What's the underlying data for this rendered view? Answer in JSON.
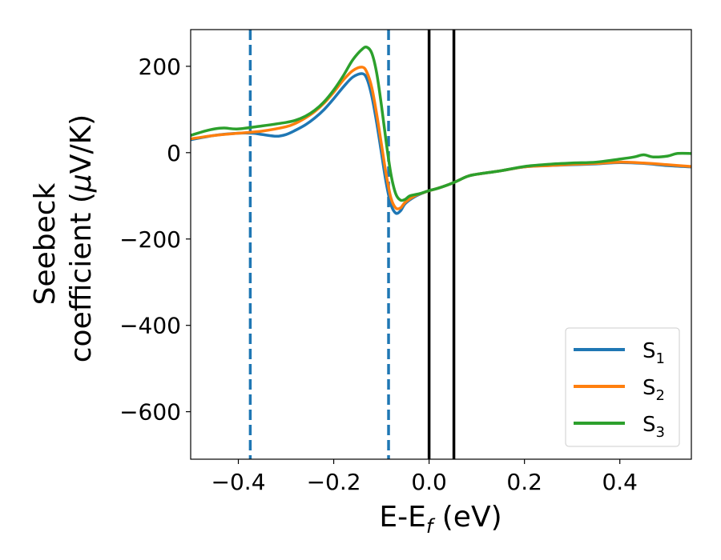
{
  "chart_data": {
    "type": "line",
    "xlabel_main": "E-E",
    "xlabel_sub": "f",
    "xlabel_unit": " (eV)",
    "ylabel_line1": "Seebeck",
    "ylabel_line2_text": "coefficient  (",
    "ylabel_mu": "μ",
    "ylabel_line2_unit": "V/K)",
    "xlim": [
      -0.5,
      0.55
    ],
    "ylim": [
      -710,
      285
    ],
    "xticks": [
      -0.4,
      -0.2,
      0.0,
      0.2,
      0.4
    ],
    "xtick_labels": [
      "−0.4",
      "−0.2",
      "0.0",
      "0.2",
      "0.4"
    ],
    "yticks": [
      200,
      0,
      -200,
      -400,
      -600
    ],
    "ytick_labels": [
      "200",
      "0",
      "−200",
      "−400",
      "−600"
    ],
    "grid": false,
    "legend_position": "bottom-right",
    "vlines": [
      {
        "x": -0.375,
        "style": "dashed",
        "color": "#1f77b4"
      },
      {
        "x": -0.085,
        "style": "dashed",
        "color": "#1f77b4"
      },
      {
        "x": 0.0,
        "style": "solid",
        "color": "#000000"
      },
      {
        "x": 0.052,
        "style": "solid",
        "color": "#000000"
      }
    ],
    "series": [
      {
        "name": "S",
        "sub": "1",
        "color": "#1f77b4",
        "x": [
          -0.5,
          -0.45,
          -0.4,
          -0.37,
          -0.35,
          -0.32,
          -0.3,
          -0.28,
          -0.26,
          -0.24,
          -0.22,
          -0.2,
          -0.18,
          -0.16,
          -0.14,
          -0.13,
          -0.12,
          -0.11,
          -0.1,
          -0.09,
          -0.08,
          -0.07,
          -0.06,
          -0.05,
          -0.03,
          -0.01,
          0.0,
          0.02,
          0.05,
          0.08,
          0.1,
          0.15,
          0.2,
          0.25,
          0.3,
          0.35,
          0.4,
          0.45,
          0.5,
          0.55
        ],
        "y": [
          30,
          40,
          45,
          45,
          42,
          38,
          42,
          52,
          64,
          80,
          100,
          125,
          152,
          175,
          183,
          170,
          130,
          70,
          0,
          -70,
          -120,
          -140,
          -135,
          -118,
          -102,
          -92,
          -88,
          -82,
          -70,
          -55,
          -50,
          -42,
          -33,
          -30,
          -28,
          -26,
          -23,
          -25,
          -30,
          -33
        ]
      },
      {
        "name": "S",
        "sub": "2",
        "color": "#ff7f0e",
        "x": [
          -0.5,
          -0.45,
          -0.4,
          -0.35,
          -0.3,
          -0.28,
          -0.26,
          -0.24,
          -0.22,
          -0.2,
          -0.18,
          -0.16,
          -0.14,
          -0.13,
          -0.12,
          -0.11,
          -0.1,
          -0.09,
          -0.08,
          -0.07,
          -0.06,
          -0.05,
          -0.03,
          -0.01,
          0.0,
          0.02,
          0.05,
          0.08,
          0.1,
          0.15,
          0.2,
          0.25,
          0.3,
          0.35,
          0.4,
          0.45,
          0.5,
          0.55
        ],
        "y": [
          32,
          40,
          45,
          50,
          60,
          68,
          80,
          95,
          115,
          140,
          168,
          190,
          198,
          185,
          150,
          90,
          20,
          -50,
          -105,
          -128,
          -128,
          -115,
          -100,
          -92,
          -88,
          -82,
          -70,
          -55,
          -50,
          -42,
          -33,
          -30,
          -27,
          -25,
          -22,
          -24,
          -28,
          -32
        ]
      },
      {
        "name": "S",
        "sub": "3",
        "color": "#2ca02c",
        "x": [
          -0.5,
          -0.47,
          -0.45,
          -0.43,
          -0.4,
          -0.35,
          -0.3,
          -0.28,
          -0.26,
          -0.24,
          -0.22,
          -0.2,
          -0.18,
          -0.16,
          -0.14,
          -0.13,
          -0.12,
          -0.11,
          -0.1,
          -0.09,
          -0.08,
          -0.07,
          -0.06,
          -0.05,
          -0.04,
          -0.02,
          0.0,
          0.02,
          0.05,
          0.08,
          0.1,
          0.15,
          0.2,
          0.25,
          0.3,
          0.35,
          0.4,
          0.43,
          0.45,
          0.47,
          0.5,
          0.52,
          0.55
        ],
        "y": [
          40,
          50,
          55,
          57,
          55,
          62,
          70,
          75,
          84,
          98,
          118,
          145,
          178,
          215,
          240,
          244,
          230,
          185,
          110,
          25,
          -50,
          -95,
          -110,
          -108,
          -100,
          -95,
          -88,
          -82,
          -70,
          -55,
          -50,
          -42,
          -32,
          -27,
          -24,
          -22,
          -15,
          -10,
          -5,
          -10,
          -8,
          -2,
          -2
        ]
      }
    ]
  }
}
